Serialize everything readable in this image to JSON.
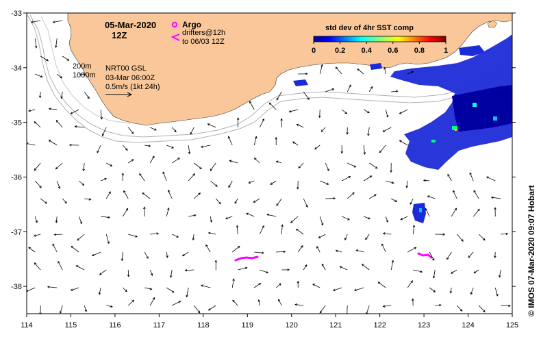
{
  "header": {
    "date": "05-Mar-2020",
    "time": "12Z"
  },
  "legend": {
    "argo_label": "Argo",
    "drifters_label": "drifters@12h",
    "drifters_to": "to 06/03 12Z",
    "argo_color": "#ff00ff",
    "drifter_color": "#ff00ff"
  },
  "colorbar": {
    "title": "std dev of 4hr SST comp",
    "ticks": [
      "0",
      "0.2",
      "0.4",
      "0.6",
      "0.8",
      "1"
    ],
    "range": [
      0,
      1
    ]
  },
  "info": {
    "depth1": "200m",
    "depth2": "1000m",
    "product": "NRT00 GSL",
    "analysis_time": "03-Mar 06:00Z",
    "scale": "0.5m/s (1kt 24h)"
  },
  "credit": "© IMOS 07-Mar-2020 09:07 Hobart",
  "axes": {
    "x_ticks": [
      "114",
      "115",
      "116",
      "117",
      "118",
      "119",
      "120",
      "121",
      "122",
      "123",
      "124",
      "125"
    ],
    "y_ticks": [
      "-33",
      "-34",
      "-35",
      "-36",
      "-37",
      "-38"
    ],
    "lon_range": [
      114,
      125
    ],
    "lat_range": [
      -38.5,
      -33
    ]
  },
  "colors": {
    "land": "#f9c79a",
    "sea": "#ffffff",
    "contour": "#b0b0b0",
    "vector": "#000000"
  }
}
